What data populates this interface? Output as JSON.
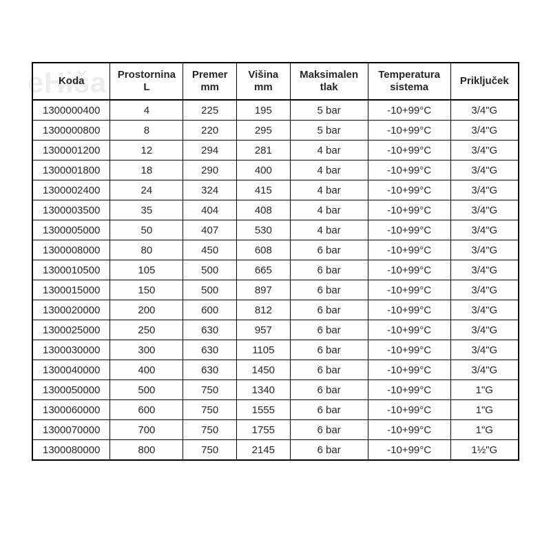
{
  "watermark": "eHiša",
  "table": {
    "type": "table",
    "background_color": "#ffffff",
    "border_color": "#000000",
    "text_color": "#262626",
    "header_fontsize_pt": 11,
    "body_fontsize_pt": 11,
    "font_family": "Arial",
    "column_widths_pct": [
      16,
      15,
      11,
      11,
      16,
      17,
      14
    ],
    "columns": [
      {
        "label": "Koda",
        "sub": ""
      },
      {
        "label": "Prostornina",
        "sub": "L"
      },
      {
        "label": "Premer",
        "sub": "mm"
      },
      {
        "label": "Višina",
        "sub": "mm"
      },
      {
        "label": "Maksimalen",
        "sub": "tlak"
      },
      {
        "label": "Temperatura",
        "sub": "sistema"
      },
      {
        "label": "Priključek",
        "sub": ""
      }
    ],
    "rows": [
      [
        "1300000400",
        "4",
        "225",
        "195",
        "5 bar",
        "-10+99°C",
        "3/4\"G"
      ],
      [
        "1300000800",
        "8",
        "220",
        "295",
        "5 bar",
        "-10+99°C",
        "3/4\"G"
      ],
      [
        "1300001200",
        "12",
        "294",
        "281",
        "4 bar",
        "-10+99°C",
        "3/4\"G"
      ],
      [
        "1300001800",
        "18",
        "290",
        "400",
        "4 bar",
        "-10+99°C",
        "3/4\"G"
      ],
      [
        "1300002400",
        "24",
        "324",
        "415",
        "4 bar",
        "-10+99°C",
        "3/4\"G"
      ],
      [
        "1300003500",
        "35",
        "404",
        "408",
        "4 bar",
        "-10+99°C",
        "3/4\"G"
      ],
      [
        "1300005000",
        "50",
        "407",
        "530",
        "4 bar",
        "-10+99°C",
        "3/4\"G"
      ],
      [
        "1300008000",
        "80",
        "450",
        "608",
        "6 bar",
        "-10+99°C",
        "3/4\"G"
      ],
      [
        "1300010500",
        "105",
        "500",
        "665",
        "6 bar",
        "-10+99°C",
        "3/4\"G"
      ],
      [
        "1300015000",
        "150",
        "500",
        "897",
        "6 bar",
        "-10+99°C",
        "3/4\"G"
      ],
      [
        "1300020000",
        "200",
        "600",
        "812",
        "6 bar",
        "-10+99°C",
        "3/4\"G"
      ],
      [
        "1300025000",
        "250",
        "630",
        "957",
        "6 bar",
        "-10+99°C",
        "3/4\"G"
      ],
      [
        "1300030000",
        "300",
        "630",
        "1105",
        "6 bar",
        "-10+99°C",
        "3/4\"G"
      ],
      [
        "1300040000",
        "400",
        "630",
        "1450",
        "6 bar",
        "-10+99°C",
        "3/4\"G"
      ],
      [
        "1300050000",
        "500",
        "750",
        "1340",
        "6 bar",
        "-10+99°C",
        "1\"G"
      ],
      [
        "1300060000",
        "600",
        "750",
        "1555",
        "6 bar",
        "-10+99°C",
        "1\"G"
      ],
      [
        "1300070000",
        "700",
        "750",
        "1755",
        "6 bar",
        "-10+99°C",
        "1\"G"
      ],
      [
        "1300080000",
        "800",
        "750",
        "2145",
        "6 bar",
        "-10+99°C",
        "1½\"G"
      ]
    ]
  }
}
